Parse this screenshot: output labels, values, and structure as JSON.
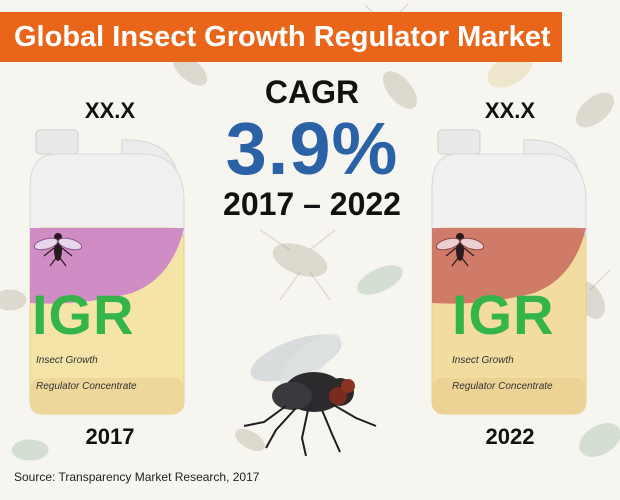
{
  "header": {
    "title": "Global Insect Growth Regulator Market"
  },
  "cagr": {
    "label": "CAGR",
    "value": "3.9%",
    "period": "2017 – 2022"
  },
  "left_product": {
    "value": "XX.X",
    "year": "2017",
    "brand": "IGR",
    "subtitle_line1": "Insect Growth",
    "subtitle_line2": "Regulator Concentrate",
    "label_color": "#c97cc9"
  },
  "right_product": {
    "value": "XX.X",
    "year": "2022",
    "brand": "IGR",
    "subtitle_line1": "Insect Growth",
    "subtitle_line2": "Regulator Concentrate",
    "label_color": "#c86a5e"
  },
  "footer": {
    "source": "Source: Transparency Market Research, 2017"
  },
  "colors": {
    "title_bar": "#e8651a",
    "cagr_value": "#2b62a6",
    "igr_green": "#35b44a",
    "jug_body": "#f5e4a8"
  }
}
